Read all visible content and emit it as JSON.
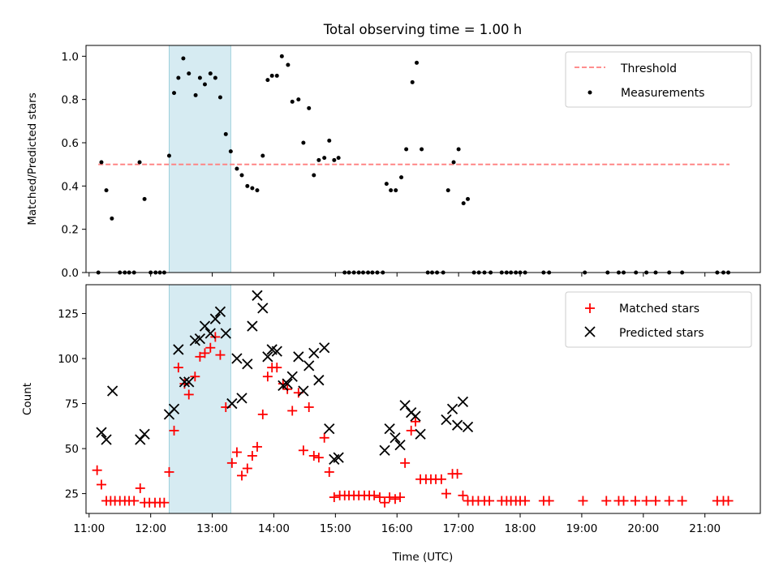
{
  "chart_data": [
    {
      "type": "scatter",
      "title": "Total observing time = 1.00 h",
      "xlabel": "",
      "ylabel": "Matched/Predicted stars",
      "xlim": [
        10.95,
        21.9
      ],
      "ylim": [
        0.0,
        1.05
      ],
      "y_ticks": [
        0.0,
        0.2,
        0.4,
        0.6,
        0.8,
        1.0
      ],
      "y_tick_labels": [
        "0.0",
        "0.2",
        "0.4",
        "0.6",
        "0.8",
        "1.0"
      ],
      "shaded_span": [
        12.3,
        13.3
      ],
      "shaded_color": "#add8e6",
      "legend_position": "upper right",
      "threshold": {
        "name": "Threshold",
        "value": 0.5,
        "x_range": [
          11.15,
          21.4
        ],
        "color": "#ff7f7f"
      },
      "series": [
        {
          "name": "Measurements",
          "color": "#000000",
          "marker": "dot",
          "points": [
            [
              11.15,
              0.0
            ],
            [
              11.2,
              0.51
            ],
            [
              11.28,
              0.38
            ],
            [
              11.37,
              0.25
            ],
            [
              11.5,
              0.0
            ],
            [
              11.58,
              0.0
            ],
            [
              11.65,
              0.0
            ],
            [
              11.73,
              0.0
            ],
            [
              11.82,
              0.51
            ],
            [
              11.9,
              0.34
            ],
            [
              12.0,
              0.0
            ],
            [
              12.08,
              0.0
            ],
            [
              12.15,
              0.0
            ],
            [
              12.22,
              0.0
            ],
            [
              12.3,
              0.54
            ],
            [
              12.38,
              0.83
            ],
            [
              12.45,
              0.9
            ],
            [
              12.53,
              0.99
            ],
            [
              12.62,
              0.92
            ],
            [
              12.73,
              0.82
            ],
            [
              12.8,
              0.9
            ],
            [
              12.88,
              0.87
            ],
            [
              12.97,
              0.92
            ],
            [
              13.05,
              0.9
            ],
            [
              13.13,
              0.81
            ],
            [
              13.22,
              0.64
            ],
            [
              13.3,
              0.56
            ],
            [
              13.4,
              0.48
            ],
            [
              13.48,
              0.45
            ],
            [
              13.57,
              0.4
            ],
            [
              13.65,
              0.39
            ],
            [
              13.73,
              0.38
            ],
            [
              13.82,
              0.54
            ],
            [
              13.9,
              0.89
            ],
            [
              13.97,
              0.91
            ],
            [
              14.05,
              0.91
            ],
            [
              14.13,
              1.0
            ],
            [
              14.23,
              0.96
            ],
            [
              14.3,
              0.79
            ],
            [
              14.4,
              0.8
            ],
            [
              14.48,
              0.6
            ],
            [
              14.57,
              0.76
            ],
            [
              14.65,
              0.45
            ],
            [
              14.73,
              0.52
            ],
            [
              14.82,
              0.53
            ],
            [
              14.9,
              0.61
            ],
            [
              14.98,
              0.52
            ],
            [
              15.05,
              0.53
            ],
            [
              15.15,
              0.0
            ],
            [
              15.22,
              0.0
            ],
            [
              15.3,
              0.0
            ],
            [
              15.38,
              0.0
            ],
            [
              15.45,
              0.0
            ],
            [
              15.53,
              0.0
            ],
            [
              15.6,
              0.0
            ],
            [
              15.68,
              0.0
            ],
            [
              15.77,
              0.0
            ],
            [
              15.83,
              0.41
            ],
            [
              15.9,
              0.38
            ],
            [
              15.98,
              0.38
            ],
            [
              16.07,
              0.44
            ],
            [
              16.15,
              0.57
            ],
            [
              16.25,
              0.88
            ],
            [
              16.32,
              0.97
            ],
            [
              16.4,
              0.57
            ],
            [
              16.5,
              0.0
            ],
            [
              16.57,
              0.0
            ],
            [
              16.65,
              0.0
            ],
            [
              16.75,
              0.0
            ],
            [
              16.83,
              0.38
            ],
            [
              16.92,
              0.51
            ],
            [
              17.0,
              0.57
            ],
            [
              17.08,
              0.32
            ],
            [
              17.15,
              0.34
            ],
            [
              17.25,
              0.0
            ],
            [
              17.33,
              0.0
            ],
            [
              17.42,
              0.0
            ],
            [
              17.52,
              0.0
            ],
            [
              17.7,
              0.0
            ],
            [
              17.78,
              0.0
            ],
            [
              17.85,
              0.0
            ],
            [
              17.93,
              0.0
            ],
            [
              18.0,
              0.0
            ],
            [
              18.08,
              0.0
            ],
            [
              18.38,
              0.0
            ],
            [
              18.47,
              0.0
            ],
            [
              19.05,
              0.0
            ],
            [
              19.42,
              0.0
            ],
            [
              19.6,
              0.0
            ],
            [
              19.68,
              0.0
            ],
            [
              19.88,
              0.0
            ],
            [
              20.05,
              0.0
            ],
            [
              20.2,
              0.0
            ],
            [
              20.42,
              0.0
            ],
            [
              20.63,
              0.0
            ],
            [
              21.2,
              0.0
            ],
            [
              21.3,
              0.0
            ],
            [
              21.38,
              0.0
            ]
          ]
        }
      ]
    },
    {
      "type": "scatter",
      "title": "",
      "xlabel": "Time (UTC)",
      "ylabel": "Count",
      "xlim": [
        10.95,
        21.9
      ],
      "ylim": [
        14,
        141
      ],
      "y_ticks": [
        25,
        50,
        75,
        100,
        125
      ],
      "y_tick_labels": [
        "25",
        "50",
        "75",
        "100",
        "125"
      ],
      "x_ticks": [
        11,
        12,
        13,
        14,
        15,
        16,
        17,
        18,
        19,
        20,
        21
      ],
      "x_tick_labels": [
        "11:00",
        "12:00",
        "13:00",
        "14:00",
        "15:00",
        "16:00",
        "17:00",
        "18:00",
        "19:00",
        "20:00",
        "21:00"
      ],
      "shaded_span": [
        12.3,
        13.3
      ],
      "shaded_color": "#add8e6",
      "legend_position": "upper right",
      "series": [
        {
          "name": "Matched stars",
          "color": "#ff0000",
          "marker": "plus",
          "points": [
            [
              11.13,
              38
            ],
            [
              11.2,
              30
            ],
            [
              11.28,
              21
            ],
            [
              11.35,
              21
            ],
            [
              11.42,
              21
            ],
            [
              11.5,
              21
            ],
            [
              11.58,
              21
            ],
            [
              11.65,
              21
            ],
            [
              11.73,
              21
            ],
            [
              11.83,
              28
            ],
            [
              11.9,
              20
            ],
            [
              11.98,
              20
            ],
            [
              12.07,
              20
            ],
            [
              12.15,
              20
            ],
            [
              12.22,
              20
            ],
            [
              12.3,
              37
            ],
            [
              12.38,
              60
            ],
            [
              12.45,
              95
            ],
            [
              12.55,
              86
            ],
            [
              12.62,
              80
            ],
            [
              12.72,
              90
            ],
            [
              12.8,
              101
            ],
            [
              12.88,
              103
            ],
            [
              12.97,
              106
            ],
            [
              13.05,
              112
            ],
            [
              13.13,
              102
            ],
            [
              13.22,
              73
            ],
            [
              13.32,
              42
            ],
            [
              13.4,
              48
            ],
            [
              13.48,
              35
            ],
            [
              13.57,
              39
            ],
            [
              13.65,
              46
            ],
            [
              13.73,
              51
            ],
            [
              13.82,
              69
            ],
            [
              13.9,
              90
            ],
            [
              13.97,
              95
            ],
            [
              14.05,
              95
            ],
            [
              14.15,
              86
            ],
            [
              14.22,
              83
            ],
            [
              14.3,
              71
            ],
            [
              14.4,
              81
            ],
            [
              14.48,
              49
            ],
            [
              14.57,
              73
            ],
            [
              14.65,
              46
            ],
            [
              14.73,
              45
            ],
            [
              14.82,
              56
            ],
            [
              14.9,
              37
            ],
            [
              14.98,
              23
            ],
            [
              15.07,
              24
            ],
            [
              15.15,
              24
            ],
            [
              15.22,
              24
            ],
            [
              15.3,
              24
            ],
            [
              15.38,
              24
            ],
            [
              15.47,
              24
            ],
            [
              15.55,
              24
            ],
            [
              15.63,
              24
            ],
            [
              15.72,
              23
            ],
            [
              15.8,
              20
            ],
            [
              15.88,
              23
            ],
            [
              15.97,
              22
            ],
            [
              16.05,
              23
            ],
            [
              16.13,
              42
            ],
            [
              16.23,
              60
            ],
            [
              16.3,
              65
            ],
            [
              16.38,
              33
            ],
            [
              16.47,
              33
            ],
            [
              16.55,
              33
            ],
            [
              16.63,
              33
            ],
            [
              16.72,
              33
            ],
            [
              16.8,
              25
            ],
            [
              16.9,
              36
            ],
            [
              16.98,
              36
            ],
            [
              17.07,
              24
            ],
            [
              17.15,
              21
            ],
            [
              17.23,
              21
            ],
            [
              17.32,
              21
            ],
            [
              17.42,
              21
            ],
            [
              17.5,
              21
            ],
            [
              17.7,
              21
            ],
            [
              17.78,
              21
            ],
            [
              17.85,
              21
            ],
            [
              17.93,
              21
            ],
            [
              18.0,
              21
            ],
            [
              18.08,
              21
            ],
            [
              18.38,
              21
            ],
            [
              18.47,
              21
            ],
            [
              19.02,
              21
            ],
            [
              19.4,
              21
            ],
            [
              19.6,
              21
            ],
            [
              19.68,
              21
            ],
            [
              19.87,
              21
            ],
            [
              20.05,
              21
            ],
            [
              20.2,
              21
            ],
            [
              20.42,
              21
            ],
            [
              20.63,
              21
            ],
            [
              21.2,
              21
            ],
            [
              21.3,
              21
            ],
            [
              21.38,
              21
            ]
          ]
        },
        {
          "name": "Predicted stars",
          "color": "#000000",
          "marker": "x",
          "points": [
            [
              11.2,
              59
            ],
            [
              11.28,
              55
            ],
            [
              11.38,
              82
            ],
            [
              11.83,
              55
            ],
            [
              11.9,
              58
            ],
            [
              12.3,
              69
            ],
            [
              12.38,
              72
            ],
            [
              12.45,
              105
            ],
            [
              12.55,
              87
            ],
            [
              12.62,
              87
            ],
            [
              12.72,
              110
            ],
            [
              12.8,
              111
            ],
            [
              12.88,
              118
            ],
            [
              12.97,
              114
            ],
            [
              13.05,
              122
            ],
            [
              13.13,
              126
            ],
            [
              13.22,
              114
            ],
            [
              13.32,
              75
            ],
            [
              13.4,
              100
            ],
            [
              13.48,
              78
            ],
            [
              13.57,
              97
            ],
            [
              13.65,
              118
            ],
            [
              13.73,
              135
            ],
            [
              13.82,
              128
            ],
            [
              13.9,
              101
            ],
            [
              13.97,
              105
            ],
            [
              14.05,
              104
            ],
            [
              14.15,
              85
            ],
            [
              14.22,
              86
            ],
            [
              14.3,
              90
            ],
            [
              14.4,
              101
            ],
            [
              14.48,
              82
            ],
            [
              14.57,
              96
            ],
            [
              14.65,
              103
            ],
            [
              14.73,
              88
            ],
            [
              14.82,
              106
            ],
            [
              14.9,
              61
            ],
            [
              14.98,
              44
            ],
            [
              15.05,
              45
            ],
            [
              15.8,
              49
            ],
            [
              15.88,
              61
            ],
            [
              15.97,
              56
            ],
            [
              16.05,
              52
            ],
            [
              16.13,
              74
            ],
            [
              16.23,
              70
            ],
            [
              16.3,
              68
            ],
            [
              16.38,
              58
            ],
            [
              16.8,
              66
            ],
            [
              16.9,
              72
            ],
            [
              16.98,
              63
            ],
            [
              17.07,
              76
            ],
            [
              17.15,
              62
            ]
          ]
        }
      ]
    }
  ]
}
